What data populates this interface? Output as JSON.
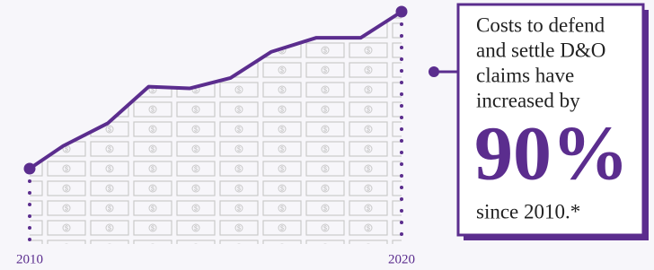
{
  "chart_data": {
    "type": "line",
    "x": [
      2010,
      2010.9,
      2012.1,
      2013.2,
      2014.3,
      2015.4,
      2016.5,
      2017.7,
      2018.9,
      2020
    ],
    "values": [
      100,
      113,
      126,
      147,
      146,
      152,
      167,
      175,
      175,
      190
    ],
    "color": "#5b2d8e",
    "xlim": [
      2010,
      2020
    ],
    "xticks": [
      2010,
      2020
    ],
    "ylim": [
      100,
      190
    ],
    "annotation": {
      "lines": [
        "Costs to defend",
        "and settle D&O",
        "claims have",
        "increased by"
      ],
      "highlight": "90%",
      "footer": "since 2010.*"
    }
  }
}
